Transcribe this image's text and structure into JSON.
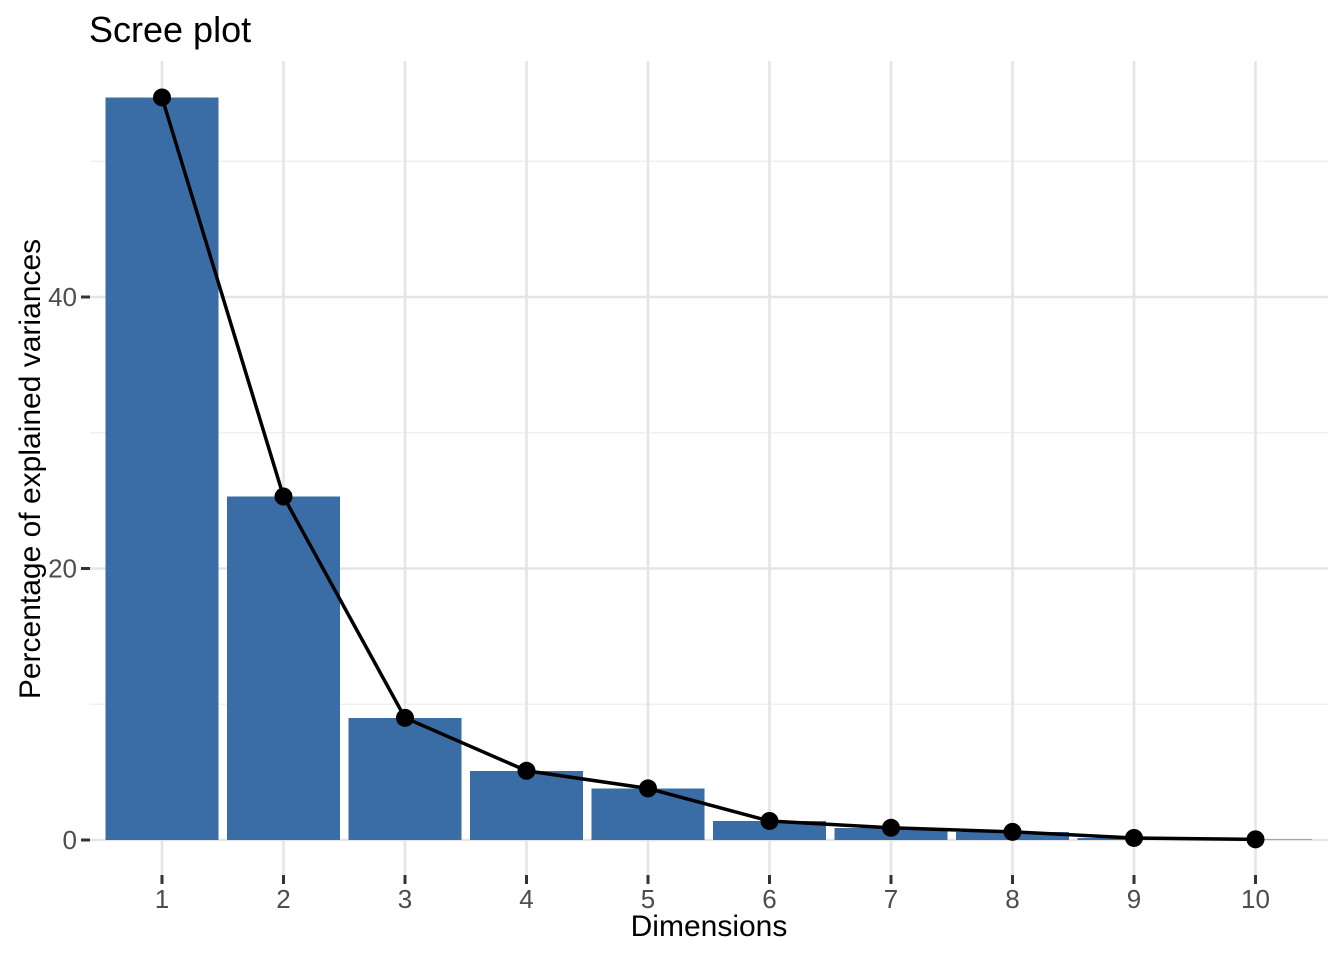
{
  "chart_data": {
    "type": "bar",
    "overlay": "line-with-points",
    "title": "Scree plot",
    "xlabel": "Dimensions",
    "ylabel": "Percentage of explained variances",
    "categories": [
      "1",
      "2",
      "3",
      "4",
      "5",
      "6",
      "7",
      "8",
      "9",
      "10"
    ],
    "values": [
      54.7,
      25.3,
      9.0,
      5.1,
      3.8,
      1.4,
      0.9,
      0.6,
      0.15,
      0.05
    ],
    "y_major_ticks": [
      0,
      20,
      40
    ],
    "y_minor_gridlines": [
      10,
      30,
      50
    ],
    "ylim": [
      -2.7,
      57.4
    ],
    "grid": true,
    "legend": false,
    "colors": {
      "bar_fill": "#3A6CA6",
      "line": "#000000",
      "point": "#000000",
      "grid_major": "#e5e5e5",
      "grid_minor": "#f0f0f0",
      "tick_mark": "#333333",
      "tick_label": "#4d4d4d",
      "text": "#000000",
      "background": "#ffffff"
    }
  }
}
